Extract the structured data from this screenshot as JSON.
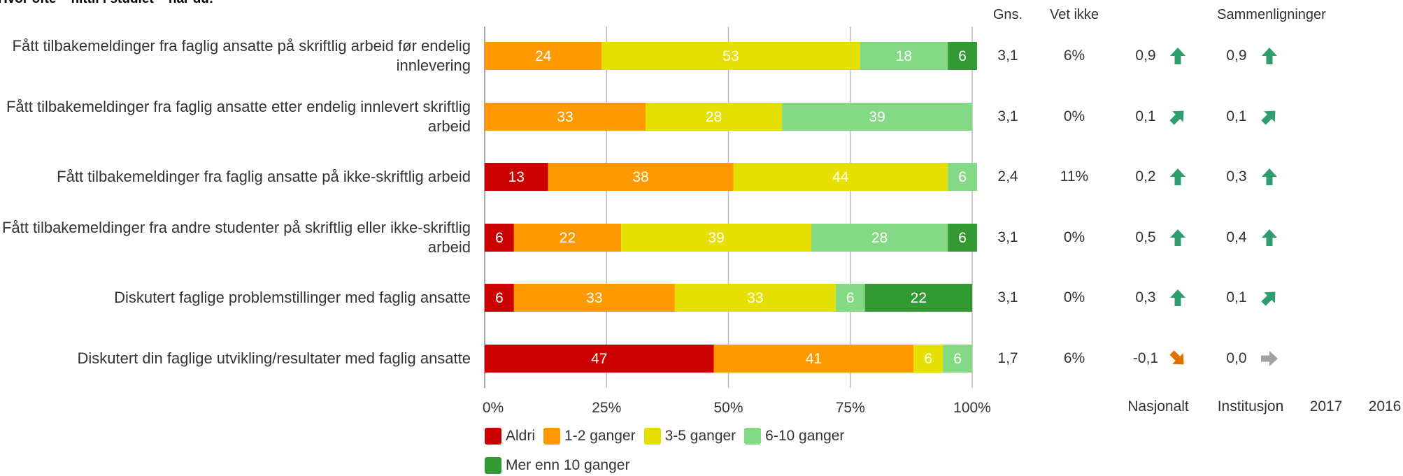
{
  "header": {
    "cut_title": "Hvor ofte – hittil i studiet – har du:",
    "col_mean": "Gns.",
    "col_dontknow": "Vet ikke",
    "col_comparisons": "Sammenligninger"
  },
  "footer": {
    "compare_labels": [
      "Nasjonalt",
      "Institusjon",
      "2017",
      "2016"
    ]
  },
  "chart_data": {
    "type": "bar",
    "orientation": "horizontal",
    "stacked": true,
    "unit": "percent",
    "categories": [
      "Fått tilbakemeldinger fra faglig ansatte på skriftlig arbeid før endelig innlevering",
      "Fått tilbakemeldinger fra faglig ansatte etter endelig innlevert skriftlig arbeid",
      "Fått tilbakemeldinger fra faglig ansatte på ikke-skriftlig arbeid",
      "Fått tilbakemeldinger fra andre studenter på skriftlig eller ikke-skriftlig arbeid",
      "Diskutert faglige problemstillinger med faglig ansatte",
      "Diskutert din faglige utvikling/resultater med faglig ansatte"
    ],
    "series": [
      {
        "name": "Aldri",
        "color": "#cc0000",
        "values": [
          0,
          0,
          13,
          6,
          6,
          47
        ]
      },
      {
        "name": "1-2 ganger",
        "color": "#ff9900",
        "values": [
          24,
          33,
          38,
          22,
          33,
          41
        ]
      },
      {
        "name": "3-5 ganger",
        "color": "#e6e000",
        "values": [
          53,
          28,
          44,
          39,
          33,
          6
        ]
      },
      {
        "name": "6-10 ganger",
        "color": "#84d984",
        "values": [
          18,
          39,
          6,
          28,
          6,
          6
        ]
      },
      {
        "name": "Mer enn 10 ganger",
        "color": "#339933",
        "values": [
          6,
          0,
          0,
          6,
          22,
          0
        ]
      }
    ],
    "x_ticks": [
      "0%",
      "25%",
      "50%",
      "75%",
      "100%"
    ],
    "xlim": [
      0,
      100
    ],
    "grid": true,
    "legend_position": "bottom",
    "mean": [
      "3,1",
      "3,1",
      "2,4",
      "3,1",
      "3,1",
      "1,7"
    ],
    "dont_know": [
      "6%",
      "0%",
      "11%",
      "0%",
      "0%",
      "6%"
    ],
    "comparisons": {
      "nasjonalt": {
        "values": [
          "0,9",
          "0,1",
          "0,2",
          "0,5",
          "0,3",
          "-0,1"
        ],
        "arrows": [
          "up",
          "up-right",
          "up",
          "up",
          "up",
          "down-right"
        ]
      },
      "institusjon": {
        "values": [
          "0,9",
          "0,1",
          "0,3",
          "0,4",
          "0,1",
          "0,0"
        ],
        "arrows": [
          "up",
          "up-right",
          "up",
          "up",
          "up-right",
          "right"
        ]
      }
    },
    "arrow_colors": {
      "up": "#2e9e6e",
      "up-right": "#2e9e6e",
      "down-right": "#e07000",
      "right": "#a0a0a0"
    }
  }
}
